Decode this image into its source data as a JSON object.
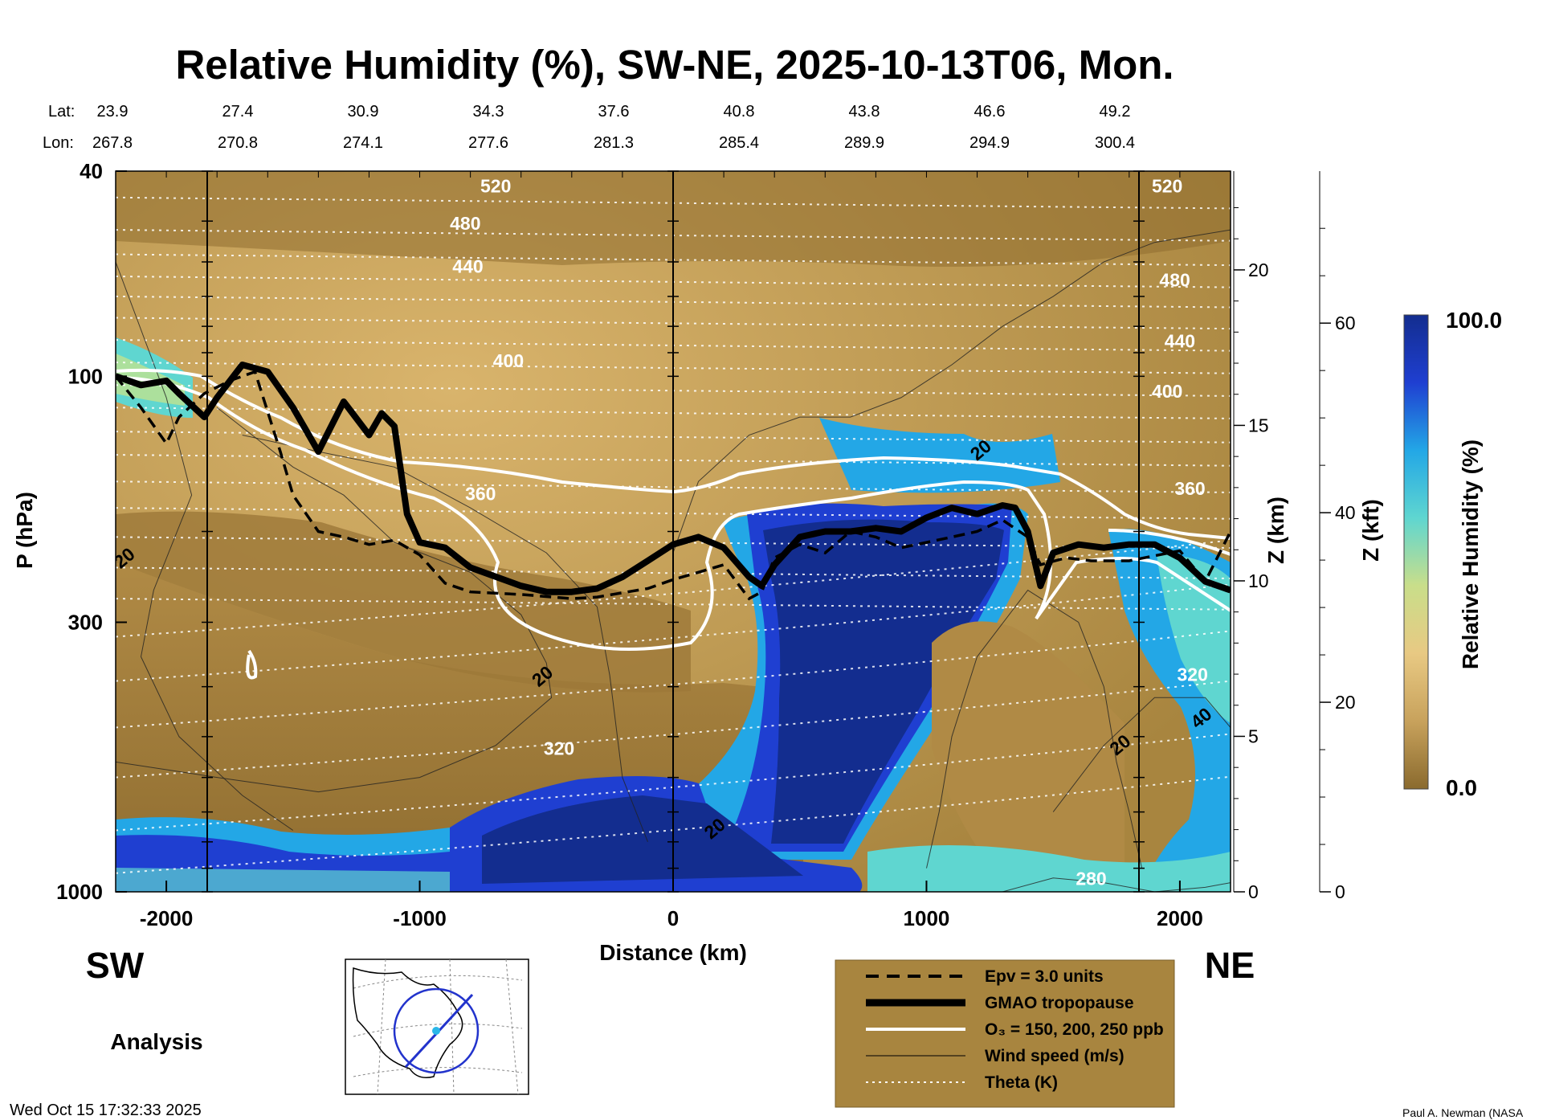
{
  "chart_data": {
    "type": "cross-section contour",
    "title": "Relative Humidity (%), SW-NE, 2025-10-13T06, Mon.",
    "xlabel": "Distance (km)",
    "ylabel": "P (hPa)",
    "xlim": [
      -2200,
      2200
    ],
    "x_ticks": [
      {
        "v": -2000,
        "label": "-2000"
      },
      {
        "v": -1000,
        "label": "-1000"
      },
      {
        "v": 0,
        "label": "0"
      },
      {
        "v": 1000,
        "label": "1000"
      },
      {
        "v": 2000,
        "label": "2000"
      }
    ],
    "p_ticks": [
      {
        "v": 40,
        "label": "40"
      },
      {
        "v": 100,
        "label": "100"
      },
      {
        "v": 300,
        "label": "300"
      },
      {
        "v": 1000,
        "label": "1000"
      }
    ],
    "z_km_label": "Z (km)",
    "z_km_ticks": [
      {
        "v": 0,
        "label": "0"
      },
      {
        "v": 5,
        "label": "5"
      },
      {
        "v": 10,
        "label": "10"
      },
      {
        "v": 15,
        "label": "15"
      },
      {
        "v": 20,
        "label": "20"
      }
    ],
    "z_kft_label": "Z (kft)",
    "z_kft_ticks": [
      {
        "v": 0,
        "label": "0"
      },
      {
        "v": 20,
        "label": "20"
      },
      {
        "v": 40,
        "label": "40"
      },
      {
        "v": 60,
        "label": "60"
      }
    ],
    "lat_label": "Lat:",
    "lon_label": "Lon:",
    "lat": [
      "23.9",
      "27.4",
      "30.9",
      "34.3",
      "37.6",
      "40.8",
      "43.8",
      "46.6",
      "49.2"
    ],
    "lon": [
      "267.8",
      "270.8",
      "274.1",
      "277.6",
      "281.3",
      "285.4",
      "289.9",
      "294.9",
      "300.4"
    ],
    "left_end": "SW",
    "right_end": "NE",
    "colorbar": {
      "label": "Relative Humidity (%)",
      "min": "0.0",
      "max": "100.0",
      "colors": [
        "#8a6a2e",
        "#c8a25c",
        "#e8c983",
        "#c9de8a",
        "#5fd6d0",
        "#23a7e6",
        "#1f3fd1",
        "#132d8f"
      ]
    },
    "theta_labels": [
      {
        "x": -700,
        "p": 44,
        "label": "520"
      },
      {
        "x": -820,
        "p": 52,
        "label": "480"
      },
      {
        "x": -810,
        "p": 63,
        "label": "440"
      },
      {
        "x": -650,
        "p": 96,
        "label": "400"
      },
      {
        "x": -760,
        "p": 174,
        "label": "360"
      },
      {
        "x": -450,
        "p": 542,
        "label": "320"
      },
      {
        "x": 1950,
        "p": 44,
        "label": "520"
      },
      {
        "x": 1980,
        "p": 67,
        "label": "480"
      },
      {
        "x": 2000,
        "p": 88,
        "label": "440"
      },
      {
        "x": 1950,
        "p": 110,
        "label": "400"
      },
      {
        "x": 2040,
        "p": 170,
        "label": "360"
      },
      {
        "x": 2050,
        "p": 390,
        "label": "320"
      },
      {
        "x": 1650,
        "p": 970,
        "label": "280"
      }
    ],
    "wind_labels": [
      {
        "x": -2150,
        "p": 230,
        "label": "20"
      },
      {
        "x": -500,
        "p": 390,
        "label": "20"
      },
      {
        "x": 1230,
        "p": 142,
        "label": "20"
      },
      {
        "x": 180,
        "p": 770,
        "label": "20"
      },
      {
        "x": 2100,
        "p": 470,
        "label": "40"
      },
      {
        "x": 1780,
        "p": 530,
        "label": "20"
      }
    ],
    "tropopause": [
      [
        -2200,
        100
      ],
      [
        -2100,
        104
      ],
      [
        -2000,
        102
      ],
      [
        -1950,
        108
      ],
      [
        -1850,
        120
      ],
      [
        -1800,
        110
      ],
      [
        -1700,
        95
      ],
      [
        -1600,
        98
      ],
      [
        -1500,
        115
      ],
      [
        -1400,
        140
      ],
      [
        -1300,
        112
      ],
      [
        -1200,
        130
      ],
      [
        -1150,
        118
      ],
      [
        -1100,
        125
      ],
      [
        -1050,
        185
      ],
      [
        -1000,
        210
      ],
      [
        -900,
        215
      ],
      [
        -800,
        235
      ],
      [
        -600,
        255
      ],
      [
        -500,
        262
      ],
      [
        -400,
        262
      ],
      [
        -300,
        258
      ],
      [
        -200,
        245
      ],
      [
        -100,
        228
      ],
      [
        0,
        212
      ],
      [
        100,
        205
      ],
      [
        200,
        215
      ],
      [
        300,
        245
      ],
      [
        350,
        255
      ],
      [
        400,
        232
      ],
      [
        500,
        205
      ],
      [
        600,
        200
      ],
      [
        700,
        200
      ],
      [
        800,
        197
      ],
      [
        900,
        200
      ],
      [
        1000,
        188
      ],
      [
        1100,
        180
      ],
      [
        1200,
        185
      ],
      [
        1300,
        178
      ],
      [
        1350,
        180
      ],
      [
        1400,
        200
      ],
      [
        1450,
        255
      ],
      [
        1500,
        220
      ],
      [
        1600,
        212
      ],
      [
        1700,
        215
      ],
      [
        1800,
        212
      ],
      [
        1900,
        212
      ],
      [
        2000,
        225
      ],
      [
        2100,
        250
      ],
      [
        2200,
        260
      ]
    ],
    "epv": [
      [
        -2200,
        100
      ],
      [
        -2100,
        115
      ],
      [
        -2000,
        135
      ],
      [
        -1950,
        120
      ],
      [
        -1850,
        108
      ],
      [
        -1750,
        102
      ],
      [
        -1650,
        98
      ],
      [
        -1550,
        140
      ],
      [
        -1500,
        170
      ],
      [
        -1400,
        200
      ],
      [
        -1300,
        205
      ],
      [
        -1200,
        212
      ],
      [
        -1100,
        208
      ],
      [
        -1000,
        222
      ],
      [
        -900,
        252
      ],
      [
        -800,
        262
      ],
      [
        -600,
        265
      ],
      [
        -400,
        270
      ],
      [
        -300,
        268
      ],
      [
        -100,
        258
      ],
      [
        0,
        248
      ],
      [
        100,
        240
      ],
      [
        200,
        232
      ],
      [
        300,
        270
      ],
      [
        350,
        262
      ],
      [
        400,
        225
      ],
      [
        500,
        212
      ],
      [
        600,
        220
      ],
      [
        700,
        200
      ],
      [
        800,
        205
      ],
      [
        900,
        215
      ],
      [
        1000,
        210
      ],
      [
        1100,
        205
      ],
      [
        1200,
        200
      ],
      [
        1300,
        190
      ],
      [
        1400,
        205
      ],
      [
        1450,
        232
      ],
      [
        1550,
        225
      ],
      [
        1650,
        228
      ],
      [
        1800,
        228
      ],
      [
        2000,
        218
      ],
      [
        2100,
        250
      ],
      [
        2200,
        200
      ]
    ],
    "legend": [
      {
        "style": "dashed",
        "label": "Epv = 3.0 units"
      },
      {
        "style": "thick",
        "label": "GMAO tropopause"
      },
      {
        "style": "white",
        "label": "O₃ = 150, 200, 250 ppb"
      },
      {
        "style": "thin",
        "label": "Wind speed (m/s)"
      },
      {
        "style": "dotted",
        "label": "Theta (K)"
      }
    ]
  },
  "footer": {
    "analysis": "Analysis",
    "timestamp": "Wed Oct 15 17:32:33 2025",
    "credit": "Paul A. Newman (NASA"
  }
}
